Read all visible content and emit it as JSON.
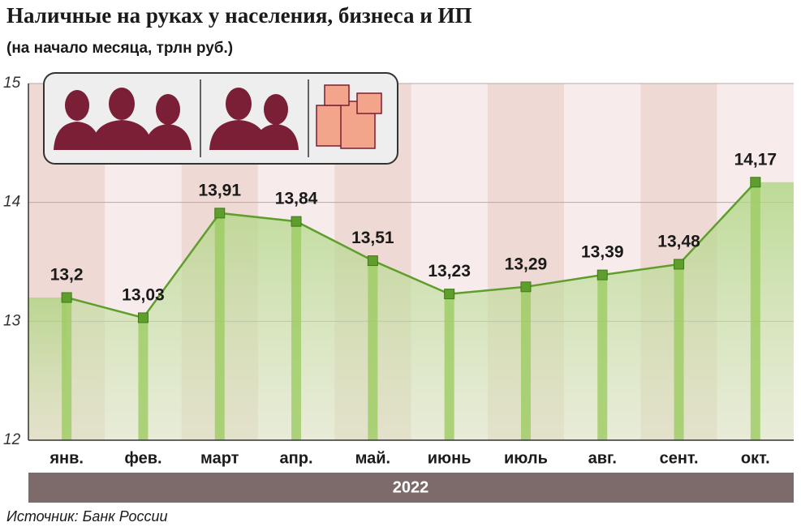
{
  "chart_data": {
    "type": "line",
    "title": "Наличные на руках у населения, бизнеса и ИП",
    "subtitle": "(на начало месяца, трлн руб.)",
    "categories": [
      "янв.",
      "фев.",
      "март",
      "апр.",
      "май.",
      "июнь",
      "июль",
      "авг.",
      "сент.",
      "окт."
    ],
    "values": [
      13.2,
      13.03,
      13.91,
      13.84,
      13.51,
      13.23,
      13.29,
      13.39,
      13.48,
      14.17
    ],
    "value_labels": [
      "13,2",
      "13,03",
      "13,91",
      "13,84",
      "13,51",
      "13,23",
      "13,29",
      "13,39",
      "13,48",
      "14,17"
    ],
    "color": "#5f9e2c",
    "ylim": [
      12,
      15
    ],
    "yticks": [
      12,
      13,
      14,
      15
    ],
    "grid": true,
    "period_label": "2022",
    "source": "Источник: Банк России"
  }
}
